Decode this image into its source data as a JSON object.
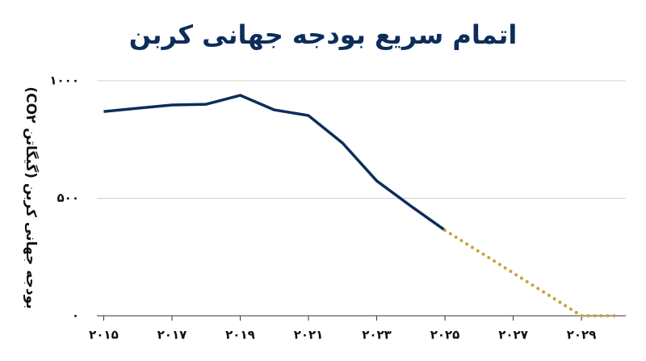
{
  "chart_data": {
    "type": "line",
    "title": "اتمام سریع بودجه جهانی کربن",
    "y_label": "بودجه جهانی کربن (گیگاتن CO۲)",
    "x": [
      2015,
      2016,
      2017,
      2018,
      2019,
      2020,
      2021,
      2022,
      2023,
      2024,
      2025,
      2026,
      2027,
      2028,
      2029,
      2030
    ],
    "series": [
      {
        "color": "#0d2d5a",
        "line_style": "solid",
        "values": [
          869,
          883,
          897,
          900,
          938,
          876,
          852,
          735,
          574,
          467,
          364,
          null,
          null,
          null,
          null,
          null
        ]
      },
      {
        "color": "#c9a13b",
        "line_style": "dotted",
        "values": [
          null,
          null,
          null,
          null,
          null,
          null,
          null,
          null,
          null,
          null,
          364,
          273,
          182,
          91,
          0,
          0
        ]
      }
    ],
    "xlim": [
      2014.8,
      2030.3
    ],
    "xticks": [
      {
        "value": 2015,
        "label": "۲۰۱۵"
      },
      {
        "value": 2017,
        "label": "۲۰۱۷"
      },
      {
        "value": 2019,
        "label": "۲۰۱۹"
      },
      {
        "value": 2021,
        "label": "۲۰۲۱"
      },
      {
        "value": 2023,
        "label": "۲۰۲۳"
      },
      {
        "value": 2025,
        "label": "۲۰۲۵"
      },
      {
        "value": 2027,
        "label": "۲۰۲۷"
      },
      {
        "value": 2029,
        "label": "۲۰۲۹"
      }
    ],
    "ylim": [
      0,
      1000
    ],
    "yticks": [
      {
        "value": 0,
        "label": "۰"
      },
      {
        "value": 500,
        "label": "۵۰۰"
      },
      {
        "value": 1000,
        "label": "۱۰۰۰"
      }
    ],
    "grid": true
  }
}
